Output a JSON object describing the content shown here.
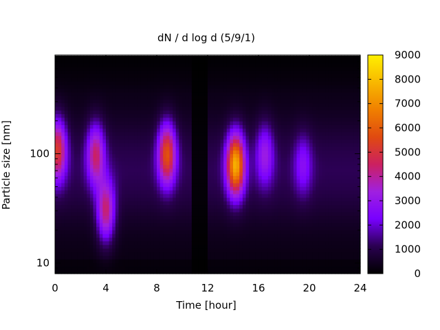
{
  "chart_data": {
    "type": "heatmap",
    "title": "dN / d log d (5/9/1)",
    "xlabel": "Time [hour]",
    "ylabel": "Particle size [nm]",
    "xlim": [
      0,
      24
    ],
    "ylim": [
      8,
      800
    ],
    "y_scale": "log",
    "x_ticks": [
      0,
      4,
      8,
      12,
      16,
      20,
      24
    ],
    "x_tick_labels": [
      "0",
      "4",
      "8",
      "12",
      "16",
      "20",
      "24"
    ],
    "y_ticks": [
      10,
      100
    ],
    "y_tick_labels": [
      "10",
      "100"
    ],
    "colorbar": {
      "min": 0,
      "max": 9000,
      "ticks": [
        0,
        1000,
        2000,
        3000,
        4000,
        5000,
        6000,
        7000,
        8000,
        9000
      ],
      "tick_labels": [
        "0",
        "1000",
        "2000",
        "3000",
        "4000",
        "5000",
        "6000",
        "7000",
        "8000",
        "9000"
      ],
      "palette": [
        "#000000",
        "#2a0050",
        "#7800ff",
        "#a020e0",
        "#cc2060",
        "#e04a10",
        "#f08000",
        "#f8b800",
        "#fff000"
      ]
    },
    "features": [
      {
        "time_hour": 0.2,
        "size_nm": 110,
        "peak": 5000
      },
      {
        "time_hour": 3.2,
        "size_nm": 100,
        "peak": 4000
      },
      {
        "time_hour": 4.0,
        "size_nm": 30,
        "peak": 4300
      },
      {
        "time_hour": 8.8,
        "size_nm": 100,
        "peak": 5600
      },
      {
        "time_hour": 14.2,
        "size_nm": 80,
        "peak": 7800
      },
      {
        "time_hour": 16.5,
        "size_nm": 100,
        "peak": 2600
      },
      {
        "time_hour": 19.5,
        "size_nm": 80,
        "peak": 1900
      }
    ],
    "low_period_hours": [
      10.8,
      11.9
    ],
    "grid": false
  }
}
